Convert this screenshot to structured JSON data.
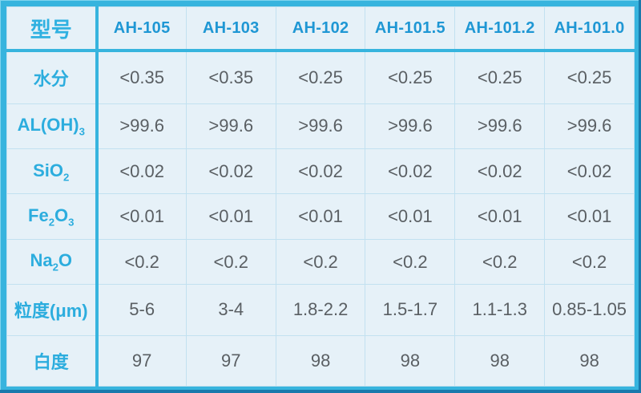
{
  "colors": {
    "frame": "#37b4de",
    "frame_shadow": "#1979ac",
    "cell_background": "#e6f1f8",
    "cell_border": "#c2e1f0",
    "column_header_text": "#1f97d4",
    "row_label_text": "#2cadde",
    "value_text": "#5a5f63"
  },
  "chart_data": {
    "type": "table",
    "title": "",
    "corner_label": "型号",
    "columns": [
      "型号",
      "AH-105",
      "AH-103",
      "AH-102",
      "AH-101.5",
      "AH-101.2",
      "AH-101.0"
    ],
    "rows": [
      {
        "name": "moisture",
        "label": [
          {
            "t": "水分"
          }
        ],
        "label_text": "水分",
        "values": [
          "<0.35",
          "<0.35",
          "<0.25",
          "<0.25",
          "<0.25",
          "<0.25"
        ]
      },
      {
        "name": "al-oh-3",
        "label": [
          {
            "t": "AL(OH)"
          },
          {
            "t": "3",
            "sub": true
          }
        ],
        "label_text": "AL(OH)3",
        "values": [
          ">99.6",
          ">99.6",
          ">99.6",
          ">99.6",
          ">99.6",
          ">99.6"
        ]
      },
      {
        "name": "sio2",
        "label": [
          {
            "t": "SiO"
          },
          {
            "t": "2",
            "sub": true
          }
        ],
        "label_text": "SiO2",
        "values": [
          "<0.02",
          "<0.02",
          "<0.02",
          "<0.02",
          "<0.02",
          "<0.02"
        ]
      },
      {
        "name": "fe2o3",
        "label": [
          {
            "t": "Fe"
          },
          {
            "t": "2",
            "sub": true
          },
          {
            "t": "O"
          },
          {
            "t": "3",
            "sub": true
          }
        ],
        "label_text": "Fe2O3",
        "values": [
          "<0.01",
          "<0.01",
          "<0.01",
          "<0.01",
          "<0.01",
          "<0.01"
        ]
      },
      {
        "name": "na2o",
        "label": [
          {
            "t": "Na"
          },
          {
            "t": "2",
            "sub": true
          },
          {
            "t": "O"
          }
        ],
        "label_text": "Na2O",
        "values": [
          "<0.2",
          "<0.2",
          "<0.2",
          "<0.2",
          "<0.2",
          "<0.2"
        ]
      },
      {
        "name": "particle-size",
        "label": [
          {
            "t": "粒度(μm)"
          }
        ],
        "label_text": "粒度(μm)",
        "values": [
          "5-6",
          "3-4",
          "1.8-2.2",
          "1.5-1.7",
          "1.1-1.3",
          "0.85-1.05"
        ]
      },
      {
        "name": "whiteness",
        "label": [
          {
            "t": "白度"
          }
        ],
        "label_text": "白度",
        "values": [
          "97",
          "97",
          "98",
          "98",
          "98",
          "98"
        ]
      }
    ]
  }
}
